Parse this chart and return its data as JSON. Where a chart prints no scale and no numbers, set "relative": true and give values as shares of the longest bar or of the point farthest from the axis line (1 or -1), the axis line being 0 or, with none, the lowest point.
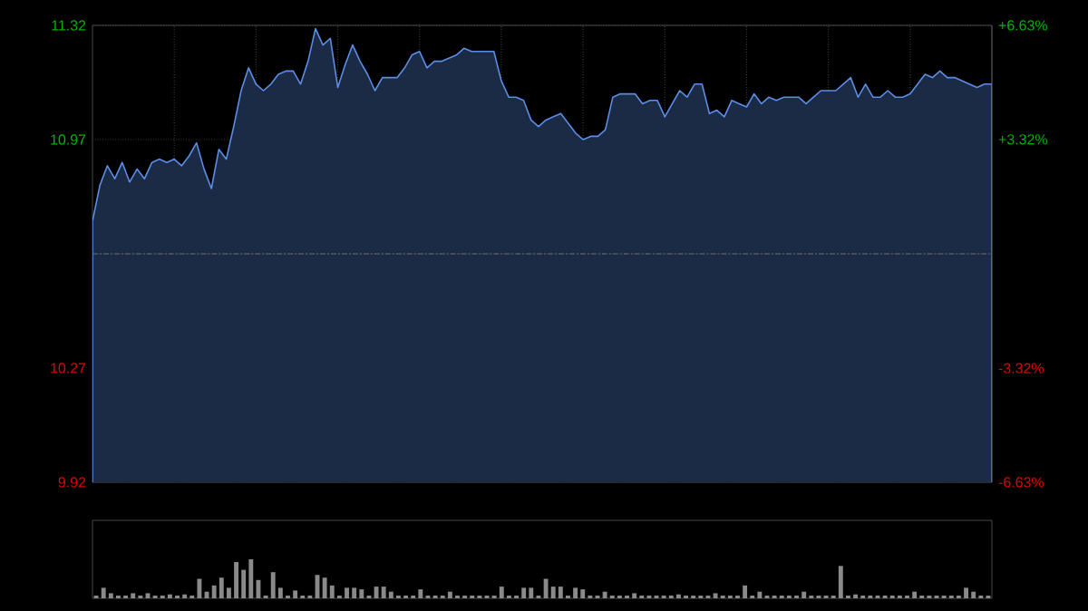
{
  "chart_data": [
    {
      "type": "area",
      "categories": [
        null,
        null,
        null,
        null,
        null,
        null,
        null,
        null,
        null,
        null,
        null,
        null,
        null,
        null,
        null,
        null,
        null,
        null,
        null,
        null,
        null,
        null,
        null,
        null,
        null,
        null,
        null,
        null,
        null,
        null,
        null,
        null,
        null,
        null,
        null,
        null,
        null,
        null,
        null,
        null,
        null,
        null,
        null,
        null,
        null,
        null,
        null,
        null,
        null,
        null,
        null,
        null,
        null,
        null,
        null,
        null,
        null,
        null,
        null,
        null,
        null,
        null,
        null,
        null,
        null,
        null,
        null,
        null,
        null,
        null,
        null,
        null,
        null,
        null,
        null,
        null,
        null,
        null,
        null,
        null,
        null,
        null,
        null,
        null,
        null,
        null,
        null,
        null,
        null,
        null,
        null,
        null,
        null,
        null,
        null,
        null,
        null,
        null,
        null,
        null,
        null,
        null,
        null,
        null,
        null,
        null,
        null,
        null,
        null,
        null,
        null,
        null,
        null,
        null,
        null,
        null,
        null,
        null,
        null,
        null,
        null,
        null
      ],
      "ylim": [
        9.92,
        11.32
      ],
      "yticks": [
        9.92,
        10.27,
        10.97,
        11.32
      ],
      "y2lim": [
        -6.63,
        6.63
      ],
      "y2ticks": [
        {
          "value": -6.63,
          "label": "-6.63%"
        },
        {
          "value": -3.32,
          "label": "-3.32%"
        },
        {
          "value": 3.32,
          "label": "+3.32%"
        },
        {
          "value": 6.63,
          "label": "+6.63%"
        }
      ],
      "ref_lines": [
        {
          "axis": "y",
          "value": 10.62
        }
      ],
      "grid": true,
      "tick_labels": "y",
      "series": [
        {
          "color": "#5b8ee6",
          "values": [
            10.72,
            10.83,
            10.89,
            10.85,
            10.9,
            10.84,
            10.88,
            10.85,
            10.9,
            10.91,
            10.9,
            10.91,
            10.89,
            10.92,
            10.96,
            10.88,
            10.82,
            10.94,
            10.91,
            11.01,
            11.12,
            11.19,
            11.14,
            11.12,
            11.14,
            11.17,
            11.18,
            11.18,
            11.14,
            11.21,
            11.31,
            11.26,
            11.28,
            11.13,
            11.2,
            11.26,
            11.21,
            11.17,
            11.12,
            11.16,
            11.16,
            11.16,
            11.19,
            11.23,
            11.24,
            11.19,
            11.21,
            11.21,
            11.22,
            11.23,
            11.25,
            11.24,
            11.24,
            11.24,
            11.24,
            11.15,
            11.1,
            11.1,
            11.09,
            11.03,
            11.01,
            11.03,
            11.04,
            11.05,
            11.02,
            10.99,
            10.97,
            10.98,
            10.98,
            11.0,
            11.1,
            11.11,
            11.11,
            11.11,
            11.08,
            11.09,
            11.09,
            11.04,
            11.08,
            11.12,
            11.1,
            11.14,
            11.14,
            11.05,
            11.06,
            11.04,
            11.09,
            11.08,
            11.07,
            11.11,
            11.08,
            11.1,
            11.09,
            11.1,
            11.1,
            11.1,
            11.08,
            11.1,
            11.12,
            11.12,
            11.12,
            11.14,
            11.16,
            11.1,
            11.14,
            11.1,
            11.1,
            11.12,
            11.1,
            11.1,
            11.11,
            11.14,
            11.17,
            11.16,
            11.18,
            11.16,
            11.16,
            11.15,
            11.14,
            11.13,
            11.14,
            11.14
          ]
        }
      ]
    },
    {
      "type": "bar",
      "relative": true,
      "tick_labels": false,
      "categories": [
        null,
        null,
        null,
        null,
        null,
        null,
        null,
        null,
        null,
        null,
        null,
        null,
        null,
        null,
        null,
        null,
        null,
        null,
        null,
        null,
        null,
        null,
        null,
        null,
        null,
        null,
        null,
        null,
        null,
        null,
        null,
        null,
        null,
        null,
        null,
        null,
        null,
        null,
        null,
        null,
        null,
        null,
        null,
        null,
        null,
        null,
        null,
        null,
        null,
        null,
        null,
        null,
        null,
        null,
        null,
        null,
        null,
        null,
        null,
        null,
        null,
        null,
        null,
        null,
        null,
        null,
        null,
        null,
        null,
        null,
        null,
        null,
        null,
        null,
        null,
        null,
        null,
        null,
        null,
        null,
        null,
        null,
        null,
        null,
        null,
        null,
        null,
        null,
        null,
        null,
        null,
        null,
        null,
        null,
        null,
        null,
        null,
        null,
        null,
        null,
        null,
        null,
        null,
        null,
        null,
        null,
        null,
        null,
        null,
        null,
        null,
        null,
        null,
        null,
        null,
        null,
        null,
        null,
        null,
        null,
        null,
        null
      ],
      "series": [
        {
          "color": "#8a8a8a",
          "values": [
            0.07,
            0.27,
            0.13,
            0.07,
            0.07,
            0.13,
            0.07,
            0.13,
            0.07,
            0.07,
            0.1,
            0.07,
            0.1,
            0.07,
            0.5,
            0.17,
            0.33,
            0.53,
            0.27,
            0.93,
            0.73,
            1,
            0.47,
            0.07,
            0.67,
            0.27,
            0.07,
            0.2,
            0.07,
            0.07,
            0.6,
            0.53,
            0.33,
            0.07,
            0.27,
            0.27,
            0.23,
            0.07,
            0.3,
            0.3,
            0.17,
            0.07,
            0.07,
            0.07,
            0.23,
            0.07,
            0.07,
            0.07,
            0.17,
            0.07,
            0.07,
            0.07,
            0.07,
            0.07,
            0.07,
            0.3,
            0.07,
            0.07,
            0.27,
            0.27,
            0.07,
            0.5,
            0.3,
            0.3,
            0.07,
            0.27,
            0.23,
            0.07,
            0.07,
            0.17,
            0.07,
            0.07,
            0.07,
            0.13,
            0.07,
            0.07,
            0.07,
            0.07,
            0.07,
            0.1,
            0.07,
            0.07,
            0.07,
            0.07,
            0.13,
            0.07,
            0.07,
            0.07,
            0.33,
            0.07,
            0.17,
            0.07,
            0.07,
            0.07,
            0.07,
            0.07,
            0.17,
            0.07,
            0.07,
            0.07,
            0.07,
            0.83,
            0.07,
            0.1,
            0.07,
            0.07,
            0.07,
            0.07,
            0.07,
            0.07,
            0.07,
            0.17,
            0.07,
            0.07,
            0.07,
            0.07,
            0.07,
            0.07,
            0.27,
            0.17,
            0.07,
            0.07
          ]
        }
      ]
    }
  ]
}
